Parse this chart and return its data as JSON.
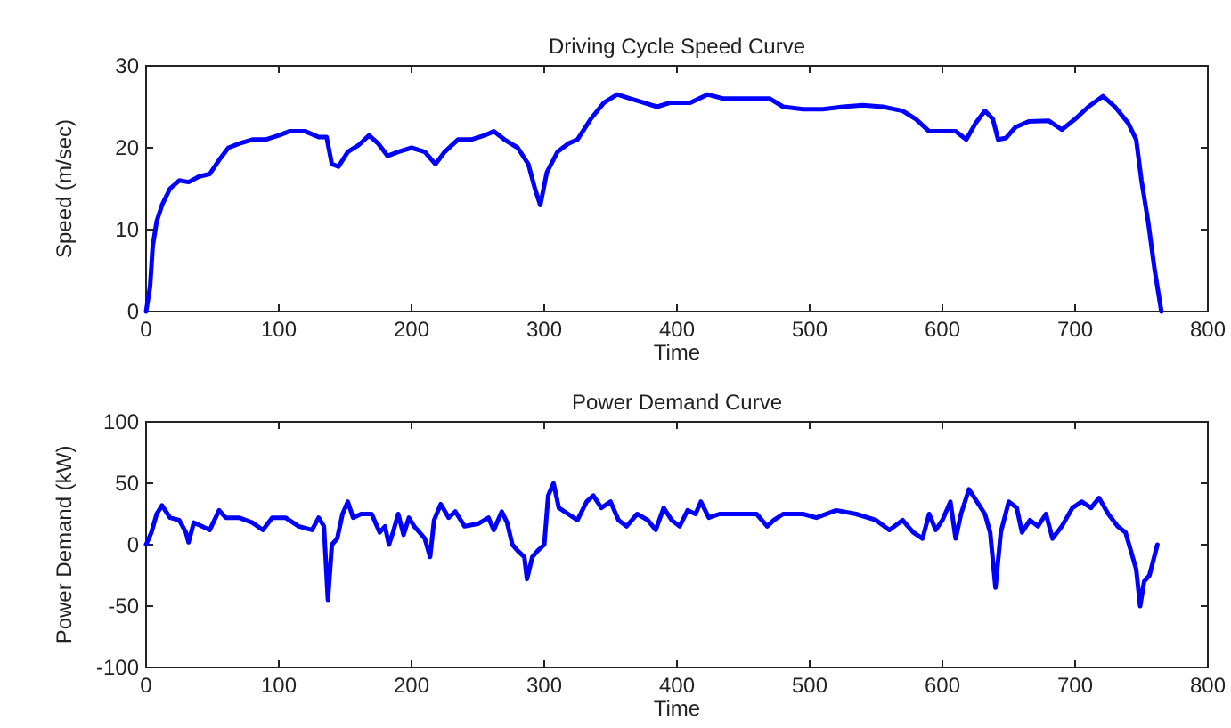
{
  "chart_data": [
    {
      "type": "line",
      "title": "Driving Cycle Speed Curve",
      "xlabel": "Time",
      "ylabel": "Speed (m/sec)",
      "xlim": [
        0,
        800
      ],
      "xticks": [
        0,
        100,
        200,
        300,
        400,
        500,
        600,
        700,
        800
      ],
      "ylim": [
        0,
        30
      ],
      "yticks": [
        0,
        10,
        20,
        30
      ],
      "line_style": "solid",
      "x": [
        0,
        3,
        5,
        8,
        12,
        18,
        25,
        32,
        40,
        48,
        55,
        62,
        70,
        80,
        90,
        100,
        108,
        120,
        130,
        136,
        140,
        145,
        152,
        160,
        168,
        175,
        182,
        190,
        200,
        210,
        218,
        225,
        235,
        245,
        255,
        262,
        270,
        280,
        288,
        293,
        297,
        302,
        310,
        318,
        325,
        335,
        345,
        355,
        365,
        375,
        385,
        395,
        410,
        423,
        435,
        450,
        470,
        480,
        495,
        510,
        525,
        540,
        555,
        570,
        580,
        590,
        600,
        610,
        618,
        625,
        632,
        638,
        642,
        648,
        655,
        665,
        680,
        690,
        700,
        710,
        721,
        730,
        740,
        746,
        750,
        755,
        760,
        765
      ],
      "series": [
        {
          "color": "#0000ff",
          "values": [
            0,
            3,
            8,
            11,
            13,
            15,
            16,
            15.8,
            16.5,
            16.8,
            18.5,
            20,
            20.5,
            21,
            21,
            21.5,
            22,
            22,
            21.3,
            21.3,
            18,
            17.7,
            19.5,
            20.3,
            21.5,
            20.5,
            19,
            19.5,
            20,
            19.5,
            18,
            19.5,
            21,
            21,
            21.5,
            22,
            21,
            20,
            18,
            15,
            13,
            17,
            19.5,
            20.5,
            21,
            23.5,
            25.5,
            26.5,
            26,
            25.5,
            25,
            25.5,
            25.5,
            26.5,
            26,
            26,
            26,
            25,
            24.7,
            24.7,
            25,
            25.2,
            25,
            24.5,
            23.5,
            22,
            22,
            22,
            21,
            23,
            24.5,
            23.5,
            21,
            21.2,
            22.5,
            23.2,
            23.3,
            22.2,
            23.5,
            25,
            26.3,
            25,
            23,
            21,
            16,
            11,
            5,
            0
          ]
        }
      ]
    },
    {
      "type": "line",
      "title": "Power Demand Curve",
      "xlabel": "Time",
      "ylabel": "Power Demand (kW)",
      "xlim": [
        0,
        800
      ],
      "xticks": [
        0,
        100,
        200,
        300,
        400,
        500,
        600,
        700,
        800
      ],
      "ylim": [
        -100,
        100
      ],
      "yticks": [
        -100,
        -50,
        0,
        50,
        100
      ],
      "line_style": "solid",
      "x": [
        0,
        4,
        8,
        12,
        18,
        25,
        30,
        32,
        36,
        42,
        48,
        55,
        60,
        70,
        80,
        88,
        95,
        105,
        115,
        125,
        130,
        134,
        137,
        140,
        144,
        148,
        152,
        156,
        162,
        170,
        176,
        180,
        183,
        186,
        190,
        194,
        198,
        202,
        206,
        210,
        214,
        217,
        222,
        228,
        233,
        240,
        250,
        258,
        262,
        268,
        272,
        276,
        280,
        285,
        287,
        291,
        295,
        300,
        303,
        307,
        311,
        318,
        325,
        332,
        337,
        343,
        350,
        356,
        362,
        370,
        378,
        384,
        390,
        396,
        402,
        408,
        414,
        418,
        424,
        432,
        445,
        460,
        468,
        473,
        480,
        495,
        505,
        520,
        535,
        550,
        560,
        570,
        578,
        585,
        590,
        595,
        600,
        606,
        610,
        614,
        620,
        626,
        632,
        636,
        640,
        644,
        650,
        656,
        660,
        666,
        672,
        678,
        683,
        690,
        698,
        705,
        712,
        718,
        725,
        732,
        738,
        742,
        746,
        749,
        752,
        756,
        762
      ],
      "series": [
        {
          "color": "#0000ff",
          "values": [
            0,
            10,
            25,
            32,
            22,
            20,
            10,
            2,
            18,
            15,
            12,
            28,
            22,
            22,
            18,
            12,
            22,
            22,
            15,
            12,
            22,
            15,
            -45,
            0,
            5,
            25,
            35,
            22,
            25,
            25,
            10,
            15,
            0,
            10,
            25,
            8,
            22,
            15,
            10,
            5,
            -10,
            20,
            33,
            22,
            27,
            15,
            17,
            22,
            12,
            27,
            18,
            0,
            -5,
            -10,
            -28,
            -10,
            -5,
            0,
            40,
            50,
            30,
            25,
            20,
            35,
            40,
            30,
            35,
            20,
            15,
            25,
            20,
            12,
            30,
            20,
            15,
            28,
            25,
            35,
            22,
            25,
            25,
            25,
            15,
            20,
            25,
            25,
            22,
            28,
            25,
            20,
            12,
            20,
            10,
            5,
            25,
            12,
            20,
            35,
            5,
            25,
            45,
            35,
            25,
            10,
            -35,
            10,
            35,
            30,
            10,
            20,
            15,
            25,
            5,
            15,
            30,
            35,
            30,
            38,
            25,
            15,
            10,
            -5,
            -20,
            -50,
            -30,
            -25,
            0
          ]
        }
      ]
    }
  ]
}
